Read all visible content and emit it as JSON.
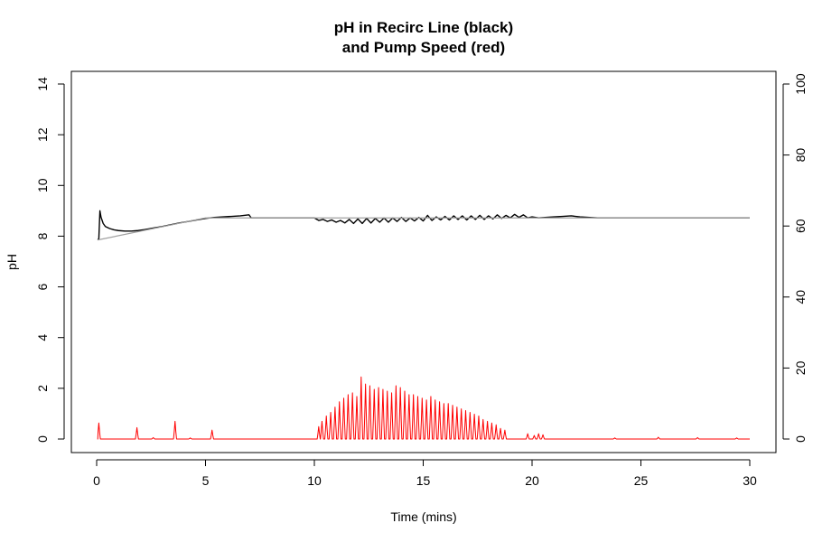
{
  "chart_data": {
    "type": "line",
    "title_line1": "pH in Recirc Line (black)",
    "title_line2": "and Pump Speed (red)",
    "xlabel": "Time (mins)",
    "ylabel": "pH",
    "ylabel_right": "",
    "xlim": [
      0,
      30
    ],
    "ylim": [
      0,
      14
    ],
    "ylim_right": [
      0,
      100
    ],
    "x_ticks": [
      0,
      5,
      10,
      15,
      20,
      25,
      30
    ],
    "y_ticks": [
      0,
      2,
      4,
      6,
      8,
      10,
      12,
      14
    ],
    "y_ticks_right": [
      0,
      20,
      40,
      60,
      80,
      100
    ],
    "grid": false,
    "legend": "none",
    "colors": {
      "ph": "#000000",
      "setpoint": "#a0a0a0",
      "pump": "#ff0000",
      "axis": "#000000"
    },
    "series": [
      {
        "axis": "left",
        "color": "#000000",
        "x": [
          0.05,
          0.1,
          0.15,
          0.2,
          0.3,
          0.4,
          0.6,
          0.8,
          1.0,
          1.3,
          1.6,
          1.9,
          2.2,
          2.6,
          3.0,
          3.4,
          3.8,
          4.2,
          4.6,
          5.0,
          5.4,
          5.8,
          6.2,
          6.6,
          7.0,
          7.1,
          7.5,
          8.0,
          8.5,
          9.0,
          9.5,
          10.0,
          10.2,
          10.4,
          10.6,
          10.8,
          11.0,
          11.2,
          11.4,
          11.6,
          11.8,
          12.0,
          12.2,
          12.4,
          12.6,
          12.8,
          13.0,
          13.2,
          13.4,
          13.6,
          13.8,
          14.0,
          14.2,
          14.4,
          14.6,
          14.8,
          15.0,
          15.2,
          15.4,
          15.6,
          15.8,
          16.0,
          16.2,
          16.4,
          16.6,
          16.8,
          17.0,
          17.2,
          17.4,
          17.6,
          17.8,
          18.0,
          18.2,
          18.4,
          18.6,
          18.8,
          19.0,
          19.2,
          19.4,
          19.6,
          19.8,
          20.0,
          20.3,
          20.6,
          21.0,
          21.4,
          21.8,
          22.2,
          23.0,
          24.0,
          26.0,
          28.0,
          30.0
        ],
        "y": [
          7.85,
          7.9,
          9.0,
          8.75,
          8.5,
          8.38,
          8.3,
          8.25,
          8.22,
          8.2,
          8.2,
          8.22,
          8.26,
          8.32,
          8.38,
          8.45,
          8.52,
          8.58,
          8.64,
          8.7,
          8.74,
          8.76,
          8.78,
          8.8,
          8.84,
          8.72,
          8.72,
          8.72,
          8.72,
          8.72,
          8.72,
          8.72,
          8.62,
          8.66,
          8.58,
          8.64,
          8.55,
          8.62,
          8.52,
          8.66,
          8.5,
          8.68,
          8.5,
          8.7,
          8.52,
          8.7,
          8.55,
          8.72,
          8.55,
          8.72,
          8.58,
          8.74,
          8.58,
          8.72,
          8.6,
          8.74,
          8.6,
          8.82,
          8.62,
          8.76,
          8.64,
          8.78,
          8.64,
          8.8,
          8.66,
          8.8,
          8.64,
          8.8,
          8.66,
          8.82,
          8.66,
          8.8,
          8.68,
          8.84,
          8.7,
          8.82,
          8.72,
          8.86,
          8.74,
          8.84,
          8.72,
          8.76,
          8.72,
          8.74,
          8.76,
          8.78,
          8.8,
          8.76,
          8.72,
          8.72,
          8.72,
          8.72,
          8.72
        ]
      },
      {
        "axis": "left",
        "color": "#a0a0a0",
        "x": [
          0.05,
          5.0,
          10.0,
          30.0
        ],
        "y": [
          7.85,
          8.72,
          8.72,
          8.72
        ]
      },
      {
        "axis": "right",
        "color": "#ff0000",
        "peaks": [
          [
            0.1,
            4.5
          ],
          [
            1.85,
            3.2
          ],
          [
            2.6,
            0.4
          ],
          [
            3.6,
            5.0
          ],
          [
            4.3,
            0.3
          ],
          [
            5.3,
            2.5
          ],
          [
            10.2,
            3.5
          ],
          [
            10.35,
            5.0
          ],
          [
            10.55,
            6.5
          ],
          [
            10.75,
            7.5
          ],
          [
            10.95,
            9.0
          ],
          [
            11.15,
            10.5
          ],
          [
            11.35,
            11.5
          ],
          [
            11.55,
            12.5
          ],
          [
            11.75,
            13.0
          ],
          [
            11.95,
            12.0
          ],
          [
            12.15,
            17.5
          ],
          [
            12.35,
            15.5
          ],
          [
            12.55,
            15.0
          ],
          [
            12.75,
            14.0
          ],
          [
            12.95,
            14.5
          ],
          [
            13.15,
            14.0
          ],
          [
            13.35,
            13.5
          ],
          [
            13.55,
            13.0
          ],
          [
            13.75,
            15.0
          ],
          [
            13.95,
            14.5
          ],
          [
            14.15,
            13.5
          ],
          [
            14.35,
            12.5
          ],
          [
            14.55,
            12.5
          ],
          [
            14.75,
            12.0
          ],
          [
            14.95,
            11.5
          ],
          [
            15.15,
            11.0
          ],
          [
            15.35,
            12.0
          ],
          [
            15.55,
            11.0
          ],
          [
            15.75,
            10.5
          ],
          [
            15.95,
            10.0
          ],
          [
            16.15,
            10.0
          ],
          [
            16.35,
            9.5
          ],
          [
            16.55,
            9.0
          ],
          [
            16.75,
            8.5
          ],
          [
            16.95,
            8.0
          ],
          [
            17.15,
            7.5
          ],
          [
            17.35,
            7.0
          ],
          [
            17.55,
            6.5
          ],
          [
            17.75,
            5.5
          ],
          [
            17.95,
            5.0
          ],
          [
            18.15,
            4.5
          ],
          [
            18.35,
            4.0
          ],
          [
            18.55,
            3.0
          ],
          [
            18.75,
            2.5
          ],
          [
            19.8,
            1.5
          ],
          [
            20.1,
            1.0
          ],
          [
            20.3,
            1.5
          ],
          [
            20.5,
            1.2
          ],
          [
            23.8,
            0.3
          ],
          [
            25.8,
            0.5
          ],
          [
            27.6,
            0.4
          ],
          [
            29.4,
            0.3
          ]
        ]
      }
    ]
  }
}
